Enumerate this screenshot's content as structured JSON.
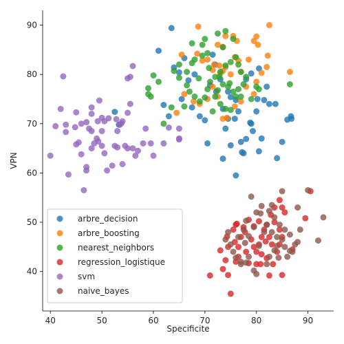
{
  "chart_data": {
    "type": "scatter",
    "xlabel": "Specificite",
    "ylabel": "VPN",
    "xlim": [
      38.5,
      95
    ],
    "ylim": [
      32,
      93
    ],
    "xticks": [
      40,
      50,
      60,
      70,
      80,
      90
    ],
    "yticks": [
      40,
      50,
      60,
      70,
      80,
      90
    ],
    "grid": false,
    "legend_position": "bottom-left",
    "series": [
      {
        "name": "arbre_decision",
        "color": "#1f77b4",
        "points": [
          [
            63.5,
            89.4
          ],
          [
            61,
            84.8
          ],
          [
            66,
            83.3
          ],
          [
            64,
            81.4
          ],
          [
            65,
            80.4
          ],
          [
            66.8,
            78.8
          ],
          [
            68,
            80
          ],
          [
            62,
            73.8
          ],
          [
            63,
            71.5
          ],
          [
            65.5,
            75
          ],
          [
            67.5,
            73.3
          ],
          [
            69,
            71.5
          ],
          [
            70,
            70.7
          ],
          [
            70.5,
            66
          ],
          [
            72,
            82
          ],
          [
            71.5,
            84
          ],
          [
            73,
            79
          ],
          [
            74.5,
            76.5
          ],
          [
            75,
            75.4
          ],
          [
            76,
            74.8
          ],
          [
            76.5,
            72.5
          ],
          [
            75.8,
            71
          ],
          [
            74,
            69
          ],
          [
            73.5,
            62.9
          ],
          [
            75,
            65.6
          ],
          [
            77,
            66.3
          ],
          [
            78,
            66.9
          ],
          [
            77.5,
            64
          ],
          [
            76,
            59.5
          ],
          [
            79,
            70
          ],
          [
            79.3,
            68.5
          ],
          [
            80,
            72.5
          ],
          [
            80.2,
            75
          ],
          [
            80.5,
            64.4
          ],
          [
            81,
            67
          ],
          [
            81.5,
            74.8
          ],
          [
            82,
            77.5
          ],
          [
            82.5,
            74
          ],
          [
            83.7,
            74
          ],
          [
            84,
            63
          ],
          [
            85,
            66.3
          ],
          [
            86,
            70.8
          ],
          [
            86.8,
            71
          ],
          [
            86.7,
            71.5
          ],
          [
            80.5,
            81.2
          ],
          [
            79,
            80.2
          ],
          [
            78,
            79
          ],
          [
            52.5,
            72.4
          ],
          [
            53.3,
            69.8
          ],
          [
            73.5,
            73
          ],
          [
            74.5,
            71
          ],
          [
            72.2,
            76.5
          ],
          [
            71,
            77.8
          ],
          [
            77.2,
            64.2
          ],
          [
            78.8,
            70.2
          ]
        ]
      },
      {
        "name": "arbre_boosting",
        "color": "#ff7f0e",
        "points": [
          [
            68.7,
            89.7
          ],
          [
            74,
            87.8
          ],
          [
            75.5,
            87.8
          ],
          [
            76.2,
            86.8
          ],
          [
            73.5,
            85.6
          ],
          [
            72.5,
            86
          ],
          [
            68.5,
            84.2
          ],
          [
            69.5,
            82.8
          ],
          [
            70.5,
            83
          ],
          [
            71.8,
            82
          ],
          [
            72.8,
            81.8
          ],
          [
            73.5,
            80.7
          ],
          [
            74,
            81.5
          ],
          [
            75,
            80
          ],
          [
            75.8,
            83.5
          ],
          [
            76.5,
            82.8
          ],
          [
            77,
            80.5
          ],
          [
            78.5,
            83
          ],
          [
            79.5,
            86.8
          ],
          [
            80,
            87.7
          ],
          [
            80.3,
            86
          ],
          [
            82.2,
            83.8
          ],
          [
            82.5,
            90
          ],
          [
            81,
            80.3
          ],
          [
            82,
            81.5
          ],
          [
            80,
            78.5
          ],
          [
            79.5,
            76
          ],
          [
            78,
            77.5
          ],
          [
            77,
            74.5
          ],
          [
            75.8,
            73.5
          ],
          [
            73.5,
            71
          ],
          [
            72.5,
            75.5
          ],
          [
            71.5,
            77.5
          ],
          [
            70.5,
            75
          ],
          [
            69,
            74
          ],
          [
            67.8,
            74.5
          ],
          [
            66,
            76
          ],
          [
            65.5,
            84
          ],
          [
            64.5,
            72.2
          ],
          [
            86.5,
            80.5
          ],
          [
            74.3,
            71.2
          ],
          [
            73,
            80.2
          ],
          [
            71.5,
            80.9
          ]
        ]
      },
      {
        "name": "nearest_neighbors",
        "color": "#2ca02c",
        "points": [
          [
            67.5,
            86.3
          ],
          [
            69.5,
            86
          ],
          [
            70,
            87.2
          ],
          [
            72.5,
            88.3
          ],
          [
            74,
            88.8
          ],
          [
            75.5,
            87.2
          ],
          [
            73.5,
            85.5
          ],
          [
            70.5,
            84.3
          ],
          [
            69.5,
            83.8
          ],
          [
            68,
            83
          ],
          [
            67.5,
            82.3
          ],
          [
            66.5,
            80.5
          ],
          [
            65,
            82
          ],
          [
            64,
            80.7
          ],
          [
            65,
            79.3
          ],
          [
            66.5,
            77.8
          ],
          [
            67,
            76.5
          ],
          [
            68,
            75.5
          ],
          [
            69,
            74.5
          ],
          [
            70,
            75.3
          ],
          [
            70.5,
            77
          ],
          [
            71,
            78.5
          ],
          [
            72,
            79.5
          ],
          [
            73,
            80.5
          ],
          [
            74,
            81.8
          ],
          [
            75,
            82.5
          ],
          [
            76,
            83.5
          ],
          [
            76.5,
            82
          ],
          [
            77,
            80.5
          ],
          [
            78,
            79.5
          ],
          [
            77.5,
            78
          ],
          [
            76.5,
            77
          ],
          [
            75.5,
            76.5
          ],
          [
            74.5,
            77.5
          ],
          [
            73.5,
            78
          ],
          [
            72.5,
            76.8
          ],
          [
            72,
            75.5
          ],
          [
            73,
            74
          ],
          [
            74,
            73
          ],
          [
            75,
            72.8
          ],
          [
            76,
            75.5
          ],
          [
            77,
            75.5
          ],
          [
            79,
            75
          ],
          [
            80,
            77.5
          ],
          [
            80.5,
            77
          ],
          [
            62,
            70
          ],
          [
            59.5,
            75.5
          ],
          [
            59,
            76
          ],
          [
            61,
            78.5
          ],
          [
            60,
            79.8
          ],
          [
            59,
            77.2
          ],
          [
            63.5,
            73.3
          ],
          [
            66,
            73.5
          ],
          [
            86.5,
            78
          ],
          [
            71.5,
            72.5
          ],
          [
            72.8,
            79.5
          ],
          [
            74.8,
            78.2
          ],
          [
            70.8,
            81.3
          ],
          [
            68.8,
            79.2
          ]
        ]
      },
      {
        "name": "regression_logistique",
        "color": "#d62728",
        "points": [
          [
            75,
            35.5
          ],
          [
            71,
            39.2
          ],
          [
            74.5,
            39.3
          ],
          [
            73.5,
            40.5
          ],
          [
            76,
            42
          ],
          [
            78.5,
            41.7
          ],
          [
            80,
            41.5
          ],
          [
            80.8,
            41.5
          ],
          [
            82.5,
            39.2
          ],
          [
            85,
            39.3
          ],
          [
            74,
            42.3
          ],
          [
            73,
            44.3
          ],
          [
            74.5,
            45
          ],
          [
            75.8,
            46
          ],
          [
            76.5,
            45
          ],
          [
            77,
            47
          ],
          [
            77.8,
            48
          ],
          [
            79,
            46.5
          ],
          [
            79.5,
            45
          ],
          [
            80,
            44
          ],
          [
            80.5,
            45.5
          ],
          [
            81,
            47
          ],
          [
            81.5,
            48.5
          ],
          [
            82,
            49.5
          ],
          [
            82.5,
            47
          ],
          [
            83,
            45.5
          ],
          [
            84,
            44
          ],
          [
            84.5,
            45.5
          ],
          [
            85,
            47
          ],
          [
            84.5,
            48.5
          ],
          [
            83.5,
            50
          ],
          [
            82.8,
            51.5
          ],
          [
            83.5,
            53
          ],
          [
            84.5,
            54.5
          ],
          [
            85,
            53
          ],
          [
            85.5,
            52
          ],
          [
            78.5,
            50.5
          ],
          [
            77.5,
            49
          ],
          [
            76,
            49.5
          ],
          [
            75.5,
            48.5
          ],
          [
            78,
            44
          ],
          [
            81,
            43.5
          ],
          [
            82,
            42.7
          ],
          [
            76.5,
            43
          ],
          [
            79.5,
            49.2
          ],
          [
            80.5,
            50.2
          ],
          [
            89.5,
            50.8
          ],
          [
            90.5,
            56.3
          ],
          [
            87,
            44.5
          ],
          [
            83.2,
            41.5
          ],
          [
            76.2,
            49.7
          ],
          [
            74.3,
            47.1
          ],
          [
            81.8,
            46.1
          ]
        ]
      },
      {
        "name": "svm",
        "color": "#9467bd",
        "points": [
          [
            42.5,
            79.6
          ],
          [
            42,
            73
          ],
          [
            43,
            69.8
          ],
          [
            43,
            68.3
          ],
          [
            41,
            69.5
          ],
          [
            40,
            63.5
          ],
          [
            43.5,
            59.7
          ],
          [
            45,
            65.8
          ],
          [
            45.5,
            66.2
          ],
          [
            46,
            63.8
          ],
          [
            47,
            61.2
          ],
          [
            47,
            60.5
          ],
          [
            46.5,
            56.5
          ],
          [
            45,
            72.3
          ],
          [
            46,
            70
          ],
          [
            47,
            70.3
          ],
          [
            47.5,
            69
          ],
          [
            48,
            68.5
          ],
          [
            48,
            72
          ],
          [
            48,
            73.3
          ],
          [
            49.5,
            74.7
          ],
          [
            49.2,
            70.5
          ],
          [
            50,
            71.2
          ],
          [
            50.5,
            70.5
          ],
          [
            50,
            68.5
          ],
          [
            49,
            67
          ],
          [
            48.5,
            66
          ],
          [
            48,
            65
          ],
          [
            50,
            65.5
          ],
          [
            50.5,
            64
          ],
          [
            51,
            60.5
          ],
          [
            52,
            61.5
          ],
          [
            52.5,
            65.5
          ],
          [
            53,
            65.2
          ],
          [
            53,
            68.5
          ],
          [
            53.5,
            69.8
          ],
          [
            54,
            70.5
          ],
          [
            55,
            72.2
          ],
          [
            55.5,
            74
          ],
          [
            55,
            79.2
          ],
          [
            55.5,
            79.5
          ],
          [
            56,
            81.7
          ],
          [
            54.5,
            65.5
          ],
          [
            55,
            65
          ],
          [
            56,
            65
          ],
          [
            56.5,
            63.5
          ],
          [
            57,
            64.5
          ],
          [
            58,
            66
          ],
          [
            58.5,
            69
          ],
          [
            59.5,
            66
          ],
          [
            60,
            63.5
          ],
          [
            62,
            66
          ],
          [
            63,
            69.2
          ],
          [
            65,
            67
          ],
          [
            65,
            69
          ],
          [
            65,
            66.8
          ],
          [
            54,
            61.8
          ],
          [
            44.8,
            69.3
          ],
          [
            51.3,
            71.1
          ],
          [
            52.8,
            70.9
          ],
          [
            53.8,
            70.1
          ],
          [
            49.3,
            66.4
          ]
        ]
      },
      {
        "name": "naive_bayes",
        "color": "#8c564b",
        "points": [
          [
            79,
            55.2
          ],
          [
            81,
            53.3
          ],
          [
            80,
            52
          ],
          [
            78,
            50.3
          ],
          [
            77.5,
            48.5
          ],
          [
            76.5,
            47
          ],
          [
            74.5,
            48
          ],
          [
            74,
            46.5
          ],
          [
            75,
            45.5
          ],
          [
            75.5,
            44
          ],
          [
            76,
            42.8
          ],
          [
            77,
            41.5
          ],
          [
            78.5,
            43
          ],
          [
            79.5,
            40.2
          ],
          [
            80,
            39.5
          ],
          [
            82,
            41.5
          ],
          [
            82.5,
            43
          ],
          [
            83.5,
            44.3
          ],
          [
            84,
            45.2
          ],
          [
            85,
            46.5
          ],
          [
            85.5,
            45
          ],
          [
            86,
            43
          ],
          [
            87,
            44
          ],
          [
            87.5,
            45.5
          ],
          [
            88,
            46
          ],
          [
            86.5,
            47.5
          ],
          [
            85.5,
            48.5
          ],
          [
            84.5,
            49.5
          ],
          [
            83.5,
            51
          ],
          [
            82.5,
            52.3
          ],
          [
            83,
            53.5
          ],
          [
            85,
            56.3
          ],
          [
            88,
            53
          ],
          [
            88.5,
            48.5
          ],
          [
            90,
            56.5
          ],
          [
            92,
            46.3
          ],
          [
            93,
            51
          ],
          [
            77,
            42
          ],
          [
            78,
            41.8
          ],
          [
            80.5,
            45.2
          ],
          [
            81.5,
            48
          ],
          [
            82,
            49.5
          ],
          [
            83,
            48
          ],
          [
            84,
            47
          ],
          [
            79.5,
            49
          ],
          [
            78.5,
            47.2
          ],
          [
            77.8,
            45.8
          ],
          [
            80.8,
            51.8
          ],
          [
            84.3,
            42.8
          ],
          [
            86.5,
            44.2
          ]
        ]
      }
    ]
  }
}
